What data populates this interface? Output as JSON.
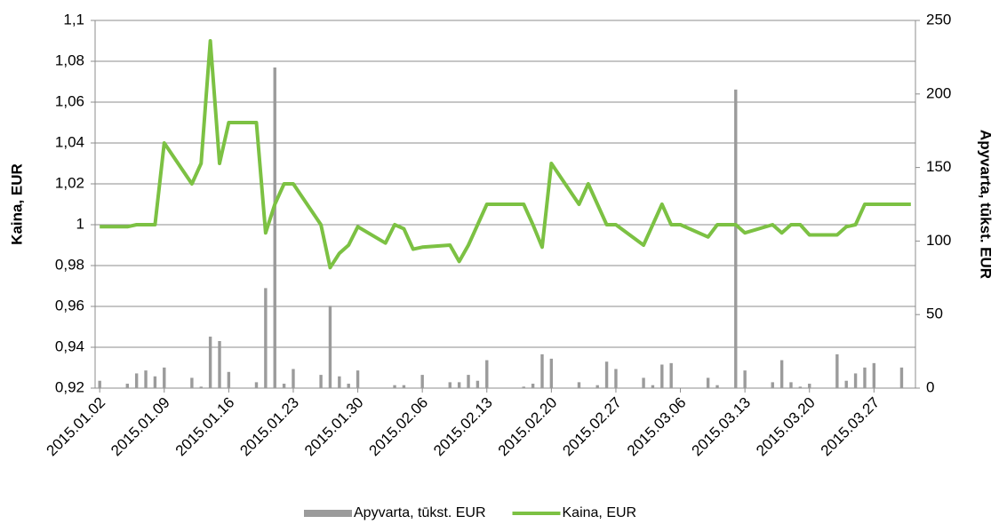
{
  "chart_data": {
    "type": "bar-line",
    "x": [
      "2015.01.02",
      "2015.01.05",
      "2015.01.06",
      "2015.01.07",
      "2015.01.08",
      "2015.01.09",
      "2015.01.12",
      "2015.01.13",
      "2015.01.14",
      "2015.01.15",
      "2015.01.16",
      "2015.01.19",
      "2015.01.20",
      "2015.01.21",
      "2015.01.22",
      "2015.01.23",
      "2015.01.26",
      "2015.01.27",
      "2015.01.28",
      "2015.01.29",
      "2015.01.30",
      "2015.02.02",
      "2015.02.03",
      "2015.02.04",
      "2015.02.05",
      "2015.02.06",
      "2015.02.09",
      "2015.02.10",
      "2015.02.11",
      "2015.02.12",
      "2015.02.13",
      "2015.02.17",
      "2015.02.18",
      "2015.02.19",
      "2015.02.20",
      "2015.02.23",
      "2015.02.24",
      "2015.02.25",
      "2015.02.26",
      "2015.02.27",
      "2015.03.02",
      "2015.03.03",
      "2015.03.04",
      "2015.03.05",
      "2015.03.06",
      "2015.03.09",
      "2015.03.10",
      "2015.03.12",
      "2015.03.13",
      "2015.03.16",
      "2015.03.17",
      "2015.03.18",
      "2015.03.19",
      "2015.03.20",
      "2015.03.23",
      "2015.03.24",
      "2015.03.25",
      "2015.03.26",
      "2015.03.27",
      "2015.03.30",
      "2015.03.31"
    ],
    "xlim": [
      "2015.01.02",
      "2015.03.31"
    ],
    "xticks": [
      "2015.01.02",
      "2015.01.09",
      "2015.01.16",
      "2015.01.23",
      "2015.01.30",
      "2015.02.06",
      "2015.02.13",
      "2015.02.20",
      "2015.02.27",
      "2015.03.06",
      "2015.03.13",
      "2015.03.20",
      "2015.03.27"
    ],
    "series": [
      {
        "name": "Apyvarta, tūkst. EUR",
        "type": "bar",
        "axis": "y2",
        "color": "#9b9b9b",
        "values": [
          5,
          3,
          10,
          12,
          8,
          14,
          7,
          1,
          35,
          32,
          11,
          4,
          68,
          218,
          3,
          13,
          9,
          56,
          8,
          3,
          12,
          0,
          2,
          2,
          0,
          9,
          4,
          4,
          9,
          5,
          19,
          1,
          3,
          23,
          20,
          4,
          0,
          2,
          18,
          13,
          7,
          2,
          16,
          17,
          0,
          7,
          2,
          203,
          12,
          4,
          19,
          4,
          1,
          3,
          23,
          5,
          10,
          14,
          17,
          14,
          0
        ]
      },
      {
        "name": "Kaina, EUR",
        "type": "line",
        "axis": "y",
        "color": "#7cc143",
        "values": [
          0.999,
          0.999,
          1.0,
          1.0,
          1.0,
          1.04,
          1.02,
          1.03,
          1.09,
          1.03,
          1.05,
          1.05,
          0.996,
          1.01,
          1.02,
          1.02,
          1.0,
          0.979,
          0.986,
          0.99,
          0.999,
          0.991,
          1.0,
          0.998,
          0.988,
          0.989,
          0.99,
          0.982,
          0.99,
          1.0,
          1.01,
          1.01,
          1.0,
          0.989,
          1.03,
          1.01,
          1.02,
          1.01,
          1.0,
          1.0,
          0.99,
          1.0,
          1.01,
          1.0,
          1.0,
          0.994,
          1.0,
          1.0,
          0.996,
          1.0,
          0.996,
          1.0,
          1.0,
          0.995,
          0.995,
          0.999,
          1.0,
          1.01,
          1.01,
          1.01,
          1.01
        ]
      }
    ],
    "ylabel": "Kaina, EUR",
    "y2label": "Apyvarta, tūkst. EUR",
    "ylim": [
      0.92,
      1.1
    ],
    "yticks": [
      {
        "value": 0.92,
        "label": "0,92"
      },
      {
        "value": 0.94,
        "label": "0,94"
      },
      {
        "value": 0.96,
        "label": "0,96"
      },
      {
        "value": 0.98,
        "label": "0,98"
      },
      1,
      {
        "value": 1.02,
        "label": "1,02"
      },
      {
        "value": 1.04,
        "label": "1,04"
      },
      {
        "value": 1.06,
        "label": "1,06"
      },
      {
        "value": 1.08,
        "label": "1,08"
      },
      {
        "value": 1.1,
        "label": "1,1"
      }
    ],
    "y2lim": [
      0,
      250
    ],
    "y2ticks": [
      0,
      50,
      100,
      150,
      200,
      250
    ],
    "grid": true,
    "legend": "bottom"
  }
}
